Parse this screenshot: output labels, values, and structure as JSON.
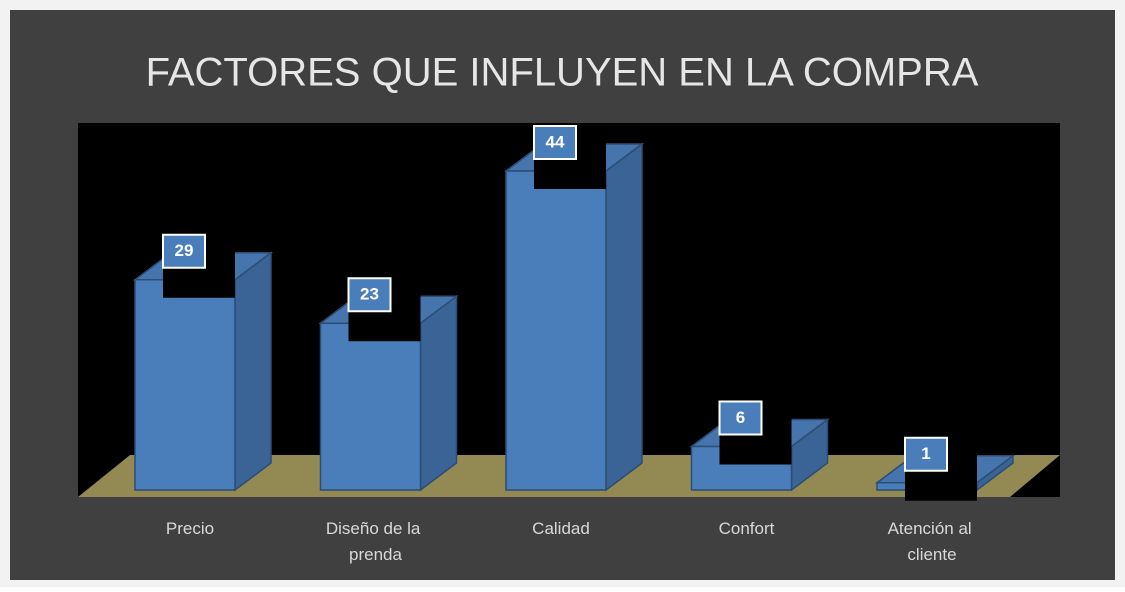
{
  "chart_data": {
    "type": "bar",
    "title": "FACTORES QUE INFLUYEN EN LA COMPRA",
    "categories": [
      "Precio",
      "Diseño de la prenda",
      "Calidad",
      "Confort",
      "Atención al cliente"
    ],
    "values": [
      29,
      23,
      44,
      6,
      1
    ],
    "color": "#4a7ebb",
    "ylim": [
      0,
      50
    ],
    "grid": false
  }
}
